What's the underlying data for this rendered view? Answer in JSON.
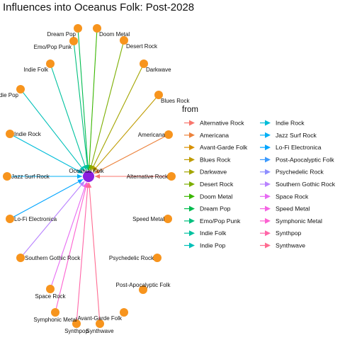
{
  "title": "Influences into Oceanus Folk: Post-2028",
  "target": {
    "name": "Oceanus Folk",
    "color": "#8b1fe0"
  },
  "node_color": "#f7941d",
  "legend": {
    "title": "from",
    "items": [
      {
        "label": "Alternative Rock",
        "color": "#f8766d"
      },
      {
        "label": "Americana",
        "color": "#ec823c"
      },
      {
        "label": "Avant-Garde Folk",
        "color": "#d89000"
      },
      {
        "label": "Blues Rock",
        "color": "#bf9b00"
      },
      {
        "label": "Darkwave",
        "color": "#a3a500"
      },
      {
        "label": "Desert Rock",
        "color": "#7cae00"
      },
      {
        "label": "Doom Metal",
        "color": "#39b600"
      },
      {
        "label": "Dream Pop",
        "color": "#00bb4e"
      },
      {
        "label": "Emo/Pop Punk",
        "color": "#00bf7d"
      },
      {
        "label": "Indie Folk",
        "color": "#00c19f"
      },
      {
        "label": "Indie Pop",
        "color": "#00c0b8"
      },
      {
        "label": "Indie Rock",
        "color": "#00bcd8"
      },
      {
        "label": "Jazz Surf Rock",
        "color": "#00b0f6"
      },
      {
        "label": "Lo-Fi Electronica",
        "color": "#00a5ff"
      },
      {
        "label": "Post-Apocalyptic Folk",
        "color": "#3d9bfe"
      },
      {
        "label": "Psychedelic Rock",
        "color": "#8e8eff"
      },
      {
        "label": "Southern Gothic Rock",
        "color": "#b983ff"
      },
      {
        "label": "Space Rock",
        "color": "#e76bf3"
      },
      {
        "label": "Speed Metal",
        "color": "#f564e3"
      },
      {
        "label": "Symphonic Metal",
        "color": "#fd61d1"
      },
      {
        "label": "Synthpop",
        "color": "#ff66a8"
      },
      {
        "label": "Synthwave",
        "color": "#ff6c91"
      }
    ]
  },
  "sources": [
    {
      "name": "Dream Pop",
      "edge": true
    },
    {
      "name": "Doom Metal",
      "edge": true
    },
    {
      "name": "Emo/Pop Punk",
      "edge": true
    },
    {
      "name": "Desert Rock",
      "edge": true
    },
    {
      "name": "Indie Folk",
      "edge": true
    },
    {
      "name": "Darkwave",
      "edge": true
    },
    {
      "name": "Indie Pop",
      "edge": true
    },
    {
      "name": "Blues Rock",
      "edge": true
    },
    {
      "name": "Indie Rock",
      "edge": true
    },
    {
      "name": "Americana",
      "edge": true
    },
    {
      "name": "Jazz Surf Rock",
      "edge": true
    },
    {
      "name": "Alternative Rock",
      "edge": true
    },
    {
      "name": "Lo-Fi Electronica",
      "edge": true
    },
    {
      "name": "Speed Metal",
      "edge": false
    },
    {
      "name": "Southern Gothic Rock",
      "edge": true
    },
    {
      "name": "Psychedelic Rock",
      "edge": false
    },
    {
      "name": "Space Rock",
      "edge": true
    },
    {
      "name": "Post-Apocalyptic Folk",
      "edge": false
    },
    {
      "name": "Symphonic Metal",
      "edge": true
    },
    {
      "name": "Avant-Garde Folk",
      "edge": false
    },
    {
      "name": "Synthpop",
      "edge": true
    },
    {
      "name": "Synthwave",
      "edge": true
    }
  ]
}
